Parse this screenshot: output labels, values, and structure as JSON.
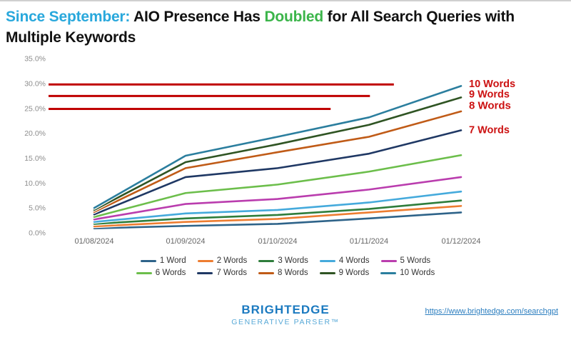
{
  "title": {
    "lines": [
      [
        {
          "text": "Since September:",
          "color": "#29a8dc"
        },
        {
          "text": " AIO Presence Has ",
          "color": "#111111"
        },
        {
          "text": "Doubled",
          "color": "#3bb54a"
        },
        {
          "text": " for All Search Queries with",
          "color": "#111111"
        }
      ],
      [
        {
          "text": "Multiple Keywords",
          "color": "#111111"
        }
      ]
    ]
  },
  "chart_data": {
    "type": "line",
    "x": [
      "01/08/2024",
      "01/09/2024",
      "01/10/2024",
      "01/11/2024",
      "01/12/2024"
    ],
    "series": [
      {
        "name": "1 Word",
        "color": "#2e6389",
        "values": [
          0.9,
          1.4,
          1.8,
          2.9,
          4.1
        ]
      },
      {
        "name": "2 Words",
        "color": "#ed7d31",
        "values": [
          1.3,
          2.2,
          2.8,
          4.1,
          5.4
        ]
      },
      {
        "name": "3 Words",
        "color": "#2e7d3b",
        "values": [
          1.8,
          2.9,
          3.6,
          4.8,
          6.5
        ]
      },
      {
        "name": "4 Words",
        "color": "#45aadc",
        "values": [
          2.2,
          3.9,
          4.6,
          6.1,
          8.3
        ]
      },
      {
        "name": "5 Words",
        "color": "#ba3dae",
        "values": [
          2.7,
          5.8,
          6.8,
          8.7,
          11.2
        ]
      },
      {
        "name": "6 Words",
        "color": "#6cbe4b",
        "values": [
          3.2,
          8.0,
          9.7,
          12.3,
          15.6
        ]
      },
      {
        "name": "7 Words",
        "color": "#1f3864",
        "values": [
          3.7,
          11.2,
          13.0,
          15.9,
          20.6
        ]
      },
      {
        "name": "8 Words",
        "color": "#c05b17",
        "values": [
          4.2,
          13.0,
          16.2,
          19.3,
          24.4
        ]
      },
      {
        "name": "9 Words",
        "color": "#2f5423",
        "values": [
          4.6,
          14.2,
          17.8,
          21.7,
          27.2
        ]
      },
      {
        "name": "10 Words",
        "color": "#2b7e9e",
        "values": [
          5.0,
          15.5,
          19.3,
          23.2,
          29.5
        ]
      }
    ],
    "ylim": [
      0,
      35
    ],
    "ytick_step": 5,
    "ytick_suffix": "%",
    "grid": false,
    "legend_position": "bottom",
    "legend_per_row": 5,
    "axis_label_color": "#8c8c8c",
    "xaxis_label_color": "#666666",
    "ref_lines": [
      {
        "value": 29.8,
        "x_end_index": 3.27,
        "color": "#c00000"
      },
      {
        "value": 27.5,
        "x_end_index": 3.01,
        "color": "#c00000"
      },
      {
        "value": 24.9,
        "x_end_index": 2.58,
        "color": "#c00000"
      }
    ],
    "right_labels": [
      {
        "text": "10 Words",
        "value": 30.0,
        "bold": false
      },
      {
        "text": "9 Words",
        "value": 27.9,
        "bold": false
      },
      {
        "text": "8 Words",
        "value": 25.6,
        "bold": true
      },
      {
        "text": "7 Words",
        "value": 20.7,
        "bold": false
      }
    ],
    "annotation_color": "#cc1111"
  },
  "footer": {
    "brand_name": "BRIGHTEDGE",
    "brand_sub": "GENERATIVE PARSER™",
    "link": "https://www.brightedge.com/searchgpt"
  }
}
